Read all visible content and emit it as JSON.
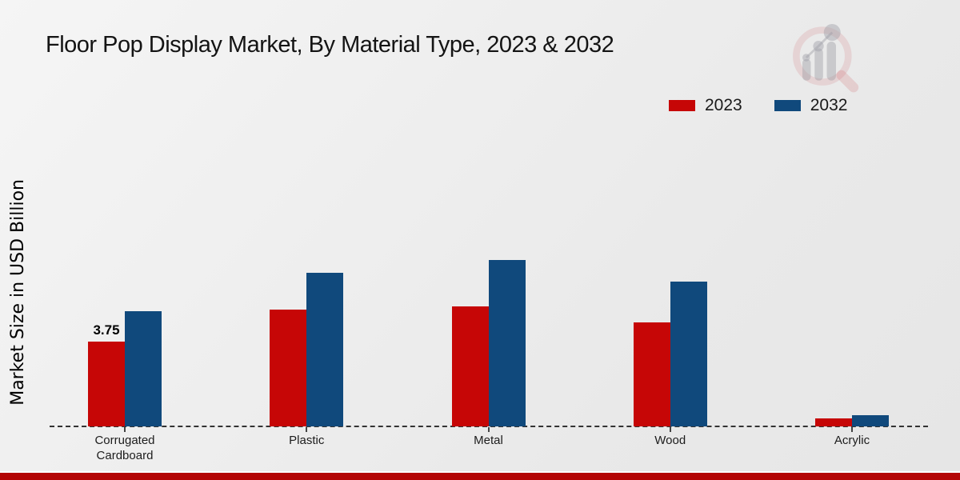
{
  "title": "Floor Pop Display Market, By Material Type, 2023 & 2032",
  "ylabel": "Market Size in USD Billion",
  "chart_data": {
    "type": "bar",
    "categories": [
      "Corrugated Cardboard",
      "Plastic",
      "Metal",
      "Wood",
      "Acrylic"
    ],
    "series": [
      {
        "name": "2023",
        "color": "#c60606",
        "values": [
          3.75,
          5.15,
          5.3,
          4.6,
          0.35
        ]
      },
      {
        "name": "2032",
        "color": "#10497c",
        "values": [
          5.1,
          6.8,
          7.35,
          6.4,
          0.5
        ]
      }
    ],
    "annotations": [
      {
        "series": 0,
        "category": 0,
        "text": "3.75"
      }
    ],
    "title": "Floor Pop Display Market, By Material Type, 2023 & 2032",
    "xlabel": "",
    "ylabel": "Market Size in USD Billion",
    "ylim": [
      0,
      8
    ],
    "grid": false,
    "legend_position": "top-right",
    "baseline_style": "dashed"
  },
  "colors": {
    "bar_2023": "#c60606",
    "bar_2032": "#10497c",
    "footer_red": "#b30505",
    "background": "#ececec"
  },
  "watermark": {
    "name": "market-research-magnifier-logo"
  }
}
